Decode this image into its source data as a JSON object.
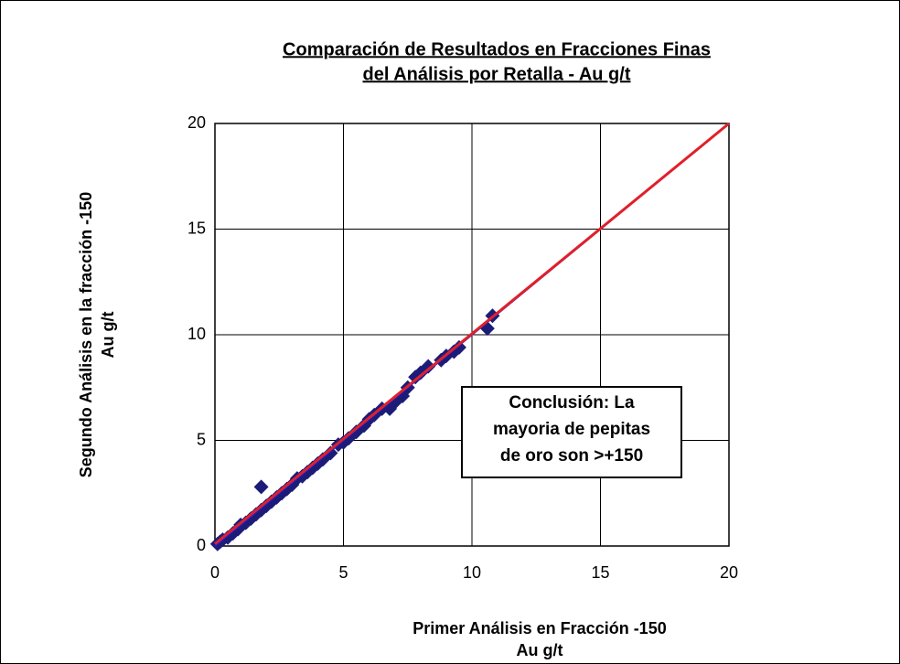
{
  "chart_data": {
    "type": "scatter",
    "title": [
      "Comparación de Resultados en Fracciones Finas",
      "del Análisis por Retalla - Au g/t"
    ],
    "x_label": [
      "Primer Análisis en Fracción -150",
      "Au g/t"
    ],
    "y_label": [
      "Segundo Análisis en la fracción -150",
      "Au g/t"
    ],
    "annotation": [
      "Conclusión: La",
      "mayoria de pepitas",
      "de oro son >+150"
    ],
    "xlim": [
      0,
      20
    ],
    "ylim": [
      0,
      20
    ],
    "xticks": [
      0,
      5,
      10,
      15,
      20
    ],
    "yticks": [
      0,
      5,
      10,
      15,
      20
    ],
    "grid": true,
    "series": [
      {
        "type": "scatter",
        "color": "#1c1c78",
        "x": [
          0.1,
          0.2,
          0.3,
          0.5,
          0.7,
          0.9,
          1.0,
          1.2,
          1.4,
          1.6,
          1.8,
          1.8,
          2.0,
          2.2,
          2.4,
          2.6,
          2.8,
          3.0,
          3.2,
          3.4,
          3.6,
          3.8,
          4.0,
          4.2,
          4.5,
          4.8,
          5.0,
          5.2,
          5.5,
          5.8,
          6.0,
          6.2,
          6.5,
          6.8,
          7.0,
          7.3,
          7.5,
          7.8,
          8.0,
          8.3,
          8.8,
          9.0,
          9.3,
          9.5,
          10.6,
          10.8
        ],
        "values": [
          0.1,
          0.2,
          0.3,
          0.4,
          0.6,
          0.8,
          1.0,
          1.1,
          1.3,
          1.5,
          1.7,
          2.8,
          1.9,
          2.1,
          2.3,
          2.5,
          2.7,
          2.9,
          3.2,
          3.3,
          3.5,
          3.7,
          3.9,
          4.1,
          4.4,
          4.8,
          4.9,
          5.1,
          5.4,
          5.7,
          6.0,
          6.2,
          6.5,
          6.5,
          6.8,
          7.1,
          7.5,
          8.0,
          8.2,
          8.5,
          8.8,
          9.0,
          9.2,
          9.4,
          10.3,
          10.9
        ]
      },
      {
        "type": "line",
        "color": "#2020d0",
        "x": [
          0,
          20
        ],
        "values": [
          0,
          20
        ]
      },
      {
        "type": "line",
        "color": "#e0202a",
        "x": [
          0,
          20
        ],
        "values": [
          0.1,
          20
        ]
      }
    ]
  }
}
